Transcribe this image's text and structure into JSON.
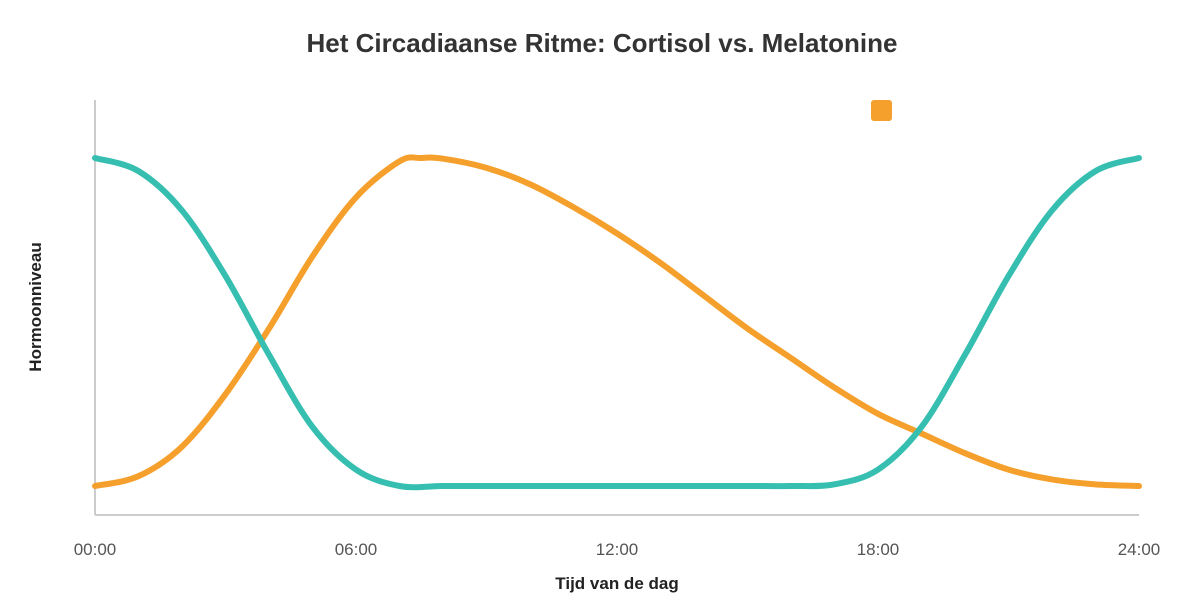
{
  "chart_data": {
    "type": "line",
    "title": "Het Circadiaanse Ritme: Cortisol vs. Melatonine",
    "xlabel": "Tijd van de dag",
    "ylabel": "Hormoonniveau",
    "x_ticks": [
      "00:00",
      "06:00",
      "12:00",
      "18:00",
      "24:00"
    ],
    "xlim": [
      0,
      24
    ],
    "ylim": [
      0,
      100
    ],
    "grid": false,
    "legend": "top-right",
    "series": [
      {
        "color": "#F5A02C",
        "x": [
          0,
          1,
          2,
          3,
          4,
          5,
          6,
          7,
          7.5,
          8,
          9,
          10,
          11,
          12,
          13,
          14,
          15,
          16,
          17,
          18,
          19,
          20,
          21,
          22,
          23,
          24
        ],
        "values": [
          0,
          3,
          12,
          28,
          48,
          70,
          88,
          99,
          100,
          99.8,
          97,
          92,
          85,
          77,
          68,
          58,
          48,
          39,
          30,
          22,
          16,
          10,
          5,
          2,
          0.5,
          0
        ]
      },
      {
        "color": "#36BFB0",
        "x": [
          0,
          1,
          2,
          3,
          4,
          5,
          6,
          7,
          8,
          9,
          10,
          11,
          12,
          13,
          14,
          15,
          16,
          17,
          18,
          19,
          20,
          21,
          22,
          23,
          24
        ],
        "values": [
          100,
          96,
          84,
          64,
          40,
          18,
          5,
          0,
          0,
          0,
          0,
          0,
          0,
          0,
          0,
          0,
          0,
          0.5,
          5,
          18,
          40,
          64,
          84,
          96,
          100
        ]
      }
    ]
  }
}
